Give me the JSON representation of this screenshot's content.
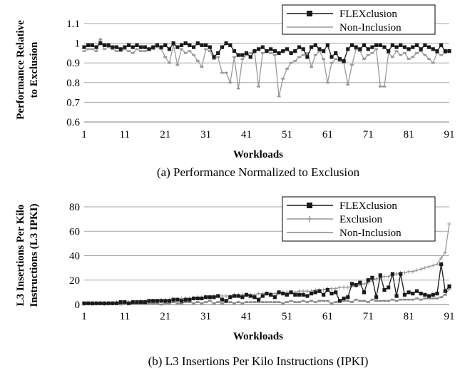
{
  "chart_data": [
    {
      "type": "line",
      "caption": "(a) Performance Normalized to Exclusion",
      "xlabel": "Workloads",
      "ylabel": "Performance Relative to Exclusion",
      "ylabel_lines": [
        "Performance Relative",
        "to Exclusion"
      ],
      "ylim": [
        0.6,
        1.1
      ],
      "yticks": [
        "0.6",
        "0.7",
        "0.8",
        "0.9",
        "1",
        "1.1"
      ],
      "xlim": [
        1,
        91
      ],
      "xticks": [
        1,
        11,
        21,
        31,
        41,
        51,
        61,
        71,
        81,
        91
      ],
      "grid": "horizontal",
      "legend_position": "top-right",
      "series": [
        {
          "name": "FLEXclusion",
          "color": "#1a1a1a",
          "marker": "square",
          "values": [
            0.98,
            0.99,
            0.99,
            0.98,
            1.0,
            0.99,
            0.99,
            0.98,
            0.98,
            0.97,
            0.98,
            0.99,
            0.98,
            0.99,
            0.98,
            0.98,
            0.97,
            0.98,
            0.99,
            0.98,
            0.99,
            0.97,
            1.0,
            0.98,
            0.99,
            1.0,
            0.99,
            0.98,
            1.0,
            0.99,
            0.99,
            0.98,
            0.93,
            0.95,
            0.98,
            1.0,
            0.99,
            0.96,
            0.94,
            0.94,
            0.95,
            0.93,
            0.96,
            0.97,
            0.98,
            0.96,
            0.97,
            0.96,
            0.95,
            0.96,
            0.97,
            0.95,
            0.96,
            0.98,
            0.97,
            0.93,
            0.98,
            0.99,
            0.97,
            0.96,
            0.99,
            0.93,
            0.95,
            0.92,
            0.91,
            0.97,
            0.99,
            0.98,
            0.97,
            0.99,
            0.97,
            0.98,
            0.99,
            0.99,
            0.98,
            0.96,
            0.99,
            0.98,
            0.99,
            0.98,
            0.97,
            0.98,
            0.99,
            0.97,
            0.99,
            0.98,
            0.97,
            0.96,
            0.99,
            0.96,
            0.96
          ]
        },
        {
          "name": "Non-Inclusion",
          "color": "#999999",
          "marker": "dash",
          "values": [
            0.96,
            0.97,
            0.97,
            0.96,
            1.02,
            0.97,
            0.98,
            0.97,
            0.96,
            0.96,
            0.97,
            0.96,
            0.95,
            0.97,
            0.96,
            0.96,
            0.97,
            0.97,
            0.98,
            0.97,
            0.93,
            0.9,
            0.99,
            0.89,
            0.97,
            0.95,
            0.96,
            0.94,
            0.91,
            0.88,
            0.97,
            0.96,
            0.92,
            0.93,
            0.85,
            0.85,
            0.8,
            0.93,
            0.77,
            0.92,
            0.94,
            0.95,
            0.96,
            0.78,
            0.95,
            0.96,
            0.95,
            0.94,
            0.73,
            0.82,
            0.87,
            0.9,
            0.91,
            0.93,
            0.94,
            0.95,
            0.88,
            0.94,
            0.96,
            0.92,
            0.8,
            0.9,
            0.92,
            0.91,
            0.9,
            0.79,
            0.89,
            0.97,
            0.96,
            0.92,
            0.94,
            0.95,
            0.97,
            0.78,
            0.78,
            0.95,
            0.93,
            0.96,
            0.94,
            0.95,
            0.92,
            0.93,
            0.95,
            0.96,
            0.94,
            0.92,
            0.9,
            0.95,
            0.94,
            0.95,
            0.96
          ]
        }
      ]
    },
    {
      "type": "line",
      "caption": "(b) L3 Insertions Per Kilo Instructions (IPKI)",
      "xlabel": "Workloads",
      "ylabel": "L3 Insertions Per Kilo Instructions (L3 IPKI)",
      "ylabel_lines": [
        "L3 Insertions Per Kilo",
        "Instructions (L3 IPKI)"
      ],
      "ylim": [
        0,
        80
      ],
      "yticks": [
        "0",
        "20",
        "40",
        "60",
        "80"
      ],
      "xlim": [
        1,
        91
      ],
      "xticks": [
        1,
        11,
        21,
        31,
        41,
        51,
        61,
        71,
        81,
        91
      ],
      "grid": "horizontal",
      "legend_position": "top-right",
      "series": [
        {
          "name": "FLEXclusion",
          "color": "#1a1a1a",
          "marker": "square",
          "values": [
            1,
            1,
            1,
            1,
            1,
            1,
            1,
            1,
            1,
            2,
            2,
            1,
            2,
            2,
            2,
            2,
            3,
            3,
            3,
            3,
            3,
            3,
            4,
            4,
            3,
            4,
            4,
            5,
            5,
            5,
            6,
            6,
            6,
            7,
            4,
            3,
            6,
            7,
            7,
            6,
            8,
            7,
            6,
            4,
            7,
            9,
            8,
            6,
            10,
            9,
            8,
            10,
            8,
            8,
            8,
            7,
            9,
            10,
            11,
            8,
            12,
            9,
            10,
            3,
            5,
            6,
            17,
            16,
            18,
            10,
            20,
            22,
            6,
            24,
            12,
            14,
            25,
            7,
            25,
            8,
            10,
            9,
            11,
            9,
            8,
            7,
            8,
            9,
            33,
            11,
            15
          ]
        },
        {
          "name": "Exclusion",
          "color": "#999999",
          "marker": "plus",
          "values": [
            1,
            1,
            1,
            1,
            1,
            1,
            1,
            1,
            2,
            2,
            2,
            2,
            2,
            2,
            3,
            3,
            3,
            3,
            3,
            4,
            4,
            4,
            4,
            4,
            5,
            5,
            5,
            5,
            6,
            6,
            6,
            6,
            7,
            7,
            7,
            7,
            7,
            8,
            8,
            8,
            8,
            8,
            8,
            9,
            9,
            9,
            9,
            9,
            10,
            10,
            10,
            10,
            10,
            11,
            11,
            11,
            11,
            12,
            12,
            12,
            13,
            13,
            13,
            14,
            14,
            14,
            15,
            15,
            16,
            17,
            18,
            20,
            21,
            22,
            23,
            23,
            24,
            25,
            26,
            26,
            27,
            27,
            28,
            29,
            30,
            31,
            32,
            33,
            38,
            43,
            66
          ]
        },
        {
          "name": "Non-Inclusion",
          "color": "#888888",
          "marker": "dash",
          "values": [
            0,
            1,
            0,
            1,
            1,
            0,
            1,
            1,
            1,
            0,
            1,
            1,
            1,
            1,
            1,
            1,
            1,
            1,
            1,
            0,
            1,
            1,
            2,
            1,
            1,
            2,
            2,
            1,
            2,
            1,
            2,
            3,
            1,
            2,
            1,
            2,
            2,
            1,
            2,
            1,
            2,
            2,
            2,
            2,
            2,
            2,
            2,
            2,
            2,
            1,
            2,
            3,
            2,
            2,
            3,
            2,
            3,
            2,
            3,
            3,
            3,
            1,
            2,
            3,
            3,
            3,
            2,
            4,
            3,
            3,
            2,
            4,
            3,
            3,
            3,
            3,
            4,
            3,
            4,
            4,
            4,
            4,
            5,
            4,
            5,
            5,
            5,
            5,
            6,
            8,
            13
          ]
        }
      ]
    }
  ]
}
